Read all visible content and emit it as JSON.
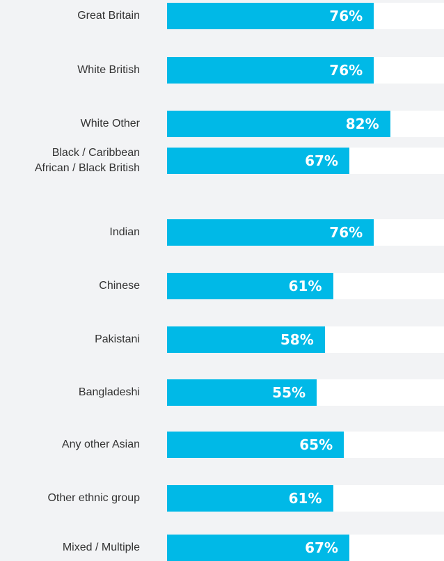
{
  "chart_data": {
    "type": "bar",
    "orientation": "horizontal",
    "categories": [
      "Great Britain",
      "White British",
      "White Other",
      "Black / Caribbean\nAfrican / Black British",
      "Indian",
      "Chinese",
      "Pakistani",
      "Bangladeshi",
      "Any other Asian",
      "Other ethnic group",
      "Mixed / Multiple"
    ],
    "values": [
      76,
      76,
      82,
      67,
      76,
      61,
      58,
      55,
      65,
      61,
      67
    ],
    "value_labels": [
      "76%",
      "76%",
      "82%",
      "67%",
      "76%",
      "61%",
      "58%",
      "55%",
      "65%",
      "61%",
      "67%"
    ],
    "color": "#00b9e7",
    "xlim": [
      0,
      100
    ]
  }
}
